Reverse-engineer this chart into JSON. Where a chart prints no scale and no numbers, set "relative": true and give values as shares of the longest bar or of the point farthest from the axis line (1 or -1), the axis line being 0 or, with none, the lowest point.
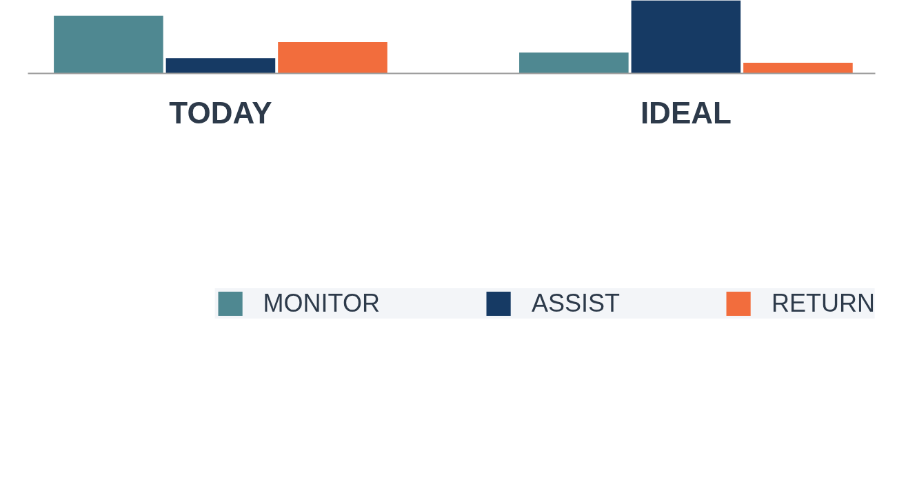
{
  "chart_data": {
    "type": "bar",
    "relative": true,
    "categories": [
      "TODAY",
      "IDEAL"
    ],
    "series": [
      {
        "name": "MONITOR",
        "color": "#4f8891",
        "values": [
          0.79,
          0.285
        ]
      },
      {
        "name": "ASSIST",
        "color": "#163a64",
        "values": [
          0.211,
          1
        ]
      },
      {
        "name": "RETURN",
        "color": "#f26d3d",
        "values": [
          0.429,
          0.146
        ]
      }
    ],
    "grid": false,
    "legend": "bottom"
  }
}
